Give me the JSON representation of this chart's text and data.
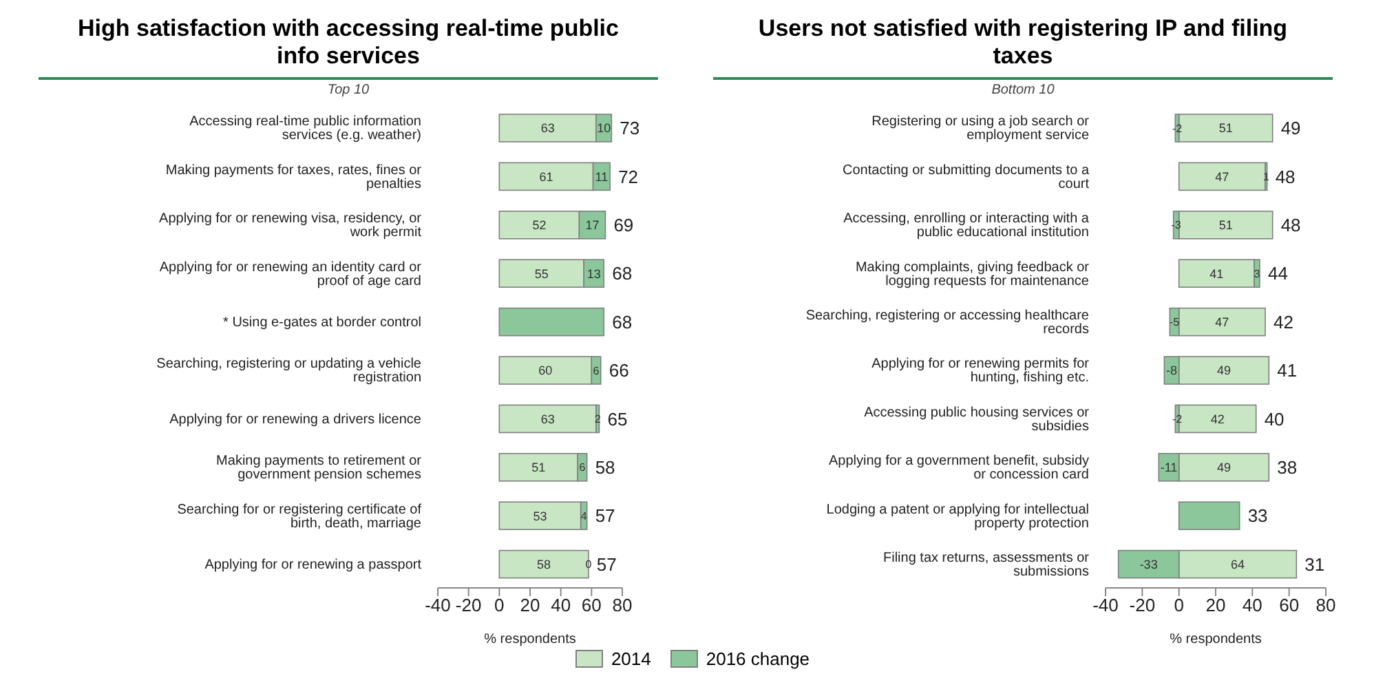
{
  "chart_data": [
    {
      "type": "bar",
      "orientation": "horizontal",
      "stacked": true,
      "title": "High satisfaction with accessing real-time public info services",
      "subtitle": "Top 10",
      "xlabel": "% respondents",
      "legend": "bottom",
      "categories": [
        "Accessing real-time public information services (e.g. weather)",
        "Making payments for taxes,  rates, fines or penalties",
        "Applying for or renewing visa, residency, or work permit",
        "Applying for or renewing an identity card or proof of age card",
        "* Using e-gates at border control",
        "Searching, registering or updating  a vehicle registration",
        "Applying for or renewing a drivers licence",
        "Making payments to retirement or government pension schemes",
        "Searching for or registering certificate of birth, death, marriage",
        "Applying for or renewing a passport"
      ],
      "series": [
        {
          "name": "2014",
          "color": "#c8e6c4",
          "values": [
            63,
            61,
            52,
            55,
            null,
            60,
            63,
            51,
            53,
            58
          ],
          "value_labels": [
            "63",
            "61",
            "52",
            "55",
            null,
            "60",
            "63",
            "51",
            "53",
            "58"
          ]
        },
        {
          "name": "2016 change",
          "color": "#8cc79b",
          "values": [
            10,
            11,
            17,
            13,
            68,
            6,
            2,
            6,
            4,
            0
          ],
          "value_labels": [
            "10",
            "11",
            "17",
            "13",
            null,
            "6",
            "2",
            "6",
            "4",
            "0"
          ]
        }
      ],
      "totals": [
        "73",
        "72",
        "69",
        "68",
        "68",
        "66",
        "65",
        "58",
        "57",
        "57"
      ],
      "xlim": [
        -40,
        80
      ],
      "xticks": [
        -40,
        -20,
        0,
        20,
        40,
        60,
        80
      ],
      "grid": false
    },
    {
      "type": "bar",
      "orientation": "horizontal",
      "stacked": true,
      "title": "Users not satisfied with registering IP and filing taxes",
      "subtitle": "Bottom 10",
      "xlabel": "% respondents",
      "categories": [
        "Registering or using a job search or employment service",
        "Contacting or submitting documents to a court",
        "Accessing, enrolling or interacting with a public educational institution",
        "Making complaints, giving feedback or logging requests for maintenance",
        "Searching, registering or accessing healthcare records",
        "Applying for or renewing permits for hunting, fishing etc.",
        "Accessing public housing services or subsidies",
        "Applying for a government  benefit, subsidy or concession card",
        "Lodging a patent or applying for intellectual property protection",
        "Filing tax returns, assessments  or submissions"
      ],
      "series": [
        {
          "name": "2014",
          "color": "#c8e6c4",
          "values": [
            51,
            47,
            51,
            41,
            47,
            49,
            42,
            49,
            null,
            64
          ],
          "value_labels": [
            "51",
            "47",
            "51",
            "41",
            "47",
            "49",
            "42",
            "49",
            null,
            "64"
          ]
        },
        {
          "name": "2016 change",
          "color": "#8cc79b",
          "values": [
            -2,
            1,
            -3,
            3,
            -5,
            -8,
            -2,
            -11,
            33,
            -33
          ],
          "value_labels": [
            "-2",
            "1",
            "-3",
            "3",
            "-5",
            "-8",
            "-2",
            "-11",
            null,
            "-33"
          ]
        }
      ],
      "totals": [
        "49",
        "48",
        "48",
        "44",
        "42",
        "41",
        "40",
        "38",
        "33",
        "31"
      ],
      "xlim": [
        -40,
        80
      ],
      "xticks": [
        -40,
        -20,
        0,
        20,
        40,
        60,
        80
      ],
      "grid": false
    }
  ]
}
